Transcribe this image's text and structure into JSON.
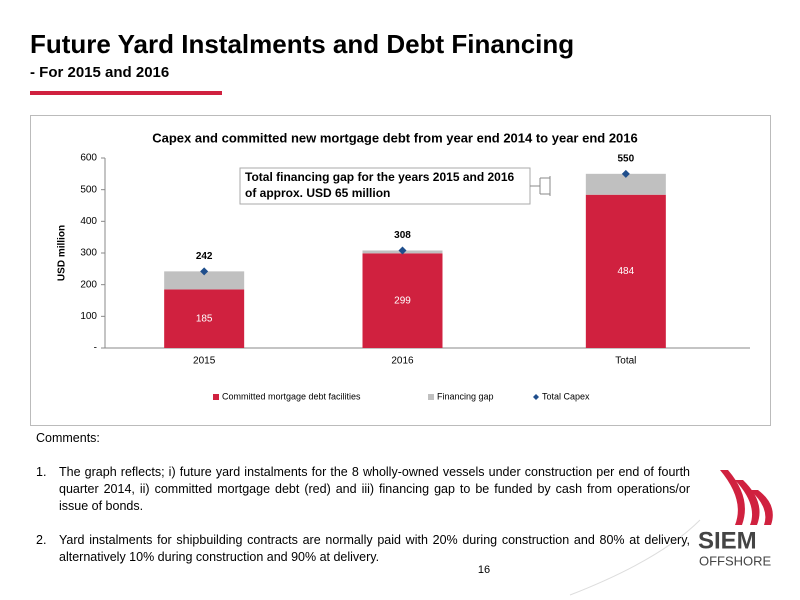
{
  "header": {
    "title": "Future Yard Instalments and Debt Financing",
    "subtitle": "- For 2015 and 2016"
  },
  "chart_data": {
    "type": "bar",
    "stacked": true,
    "title": "Capex and committed new mortgage debt from  year end 2014 to year end 2016",
    "y_label": "USD million",
    "categories": [
      "2015",
      "2016",
      "Total"
    ],
    "series": [
      {
        "name": "Committed mortgage debt facilities",
        "type": "bar",
        "color": "#d0213f",
        "values": [
          185,
          299,
          484
        ],
        "labels_shown": true
      },
      {
        "name": "Financing gap",
        "type": "bar",
        "color": "#c0c0c0",
        "values": [
          57,
          9,
          66
        ],
        "labels_shown": false
      },
      {
        "name": "Total Capex",
        "type": "marker",
        "color": "#1f4e8c",
        "values": [
          242,
          308,
          550
        ],
        "labels_shown": true
      }
    ],
    "ylim": [
      0,
      600
    ],
    "yticks": [
      {
        "value": 0,
        "label": "-"
      },
      100,
      200,
      300,
      400,
      500,
      600
    ],
    "annotation": [
      "Total financing gap for the years 2015 and 2016",
      "of approx. USD 65 million"
    ]
  },
  "comments": {
    "heading": "Comments:",
    "items": [
      {
        "number": "1.",
        "text": "The graph reflects; i) future yard instalments for the 8 wholly-owned vessels under construction per end of fourth quarter 2014, ii) committed mortgage debt (red) and iii) financing gap to be funded by cash from operations/or issue of bonds."
      },
      {
        "number": "2.",
        "text": "Yard instalments for shipbuilding contracts are normally paid with 20% during construction and 80% at delivery, alternatively 10% during construction and 90% at delivery."
      }
    ]
  },
  "page_number": "16",
  "logo": {
    "name": "SIEM",
    "tagline": "OFFSHORE"
  }
}
